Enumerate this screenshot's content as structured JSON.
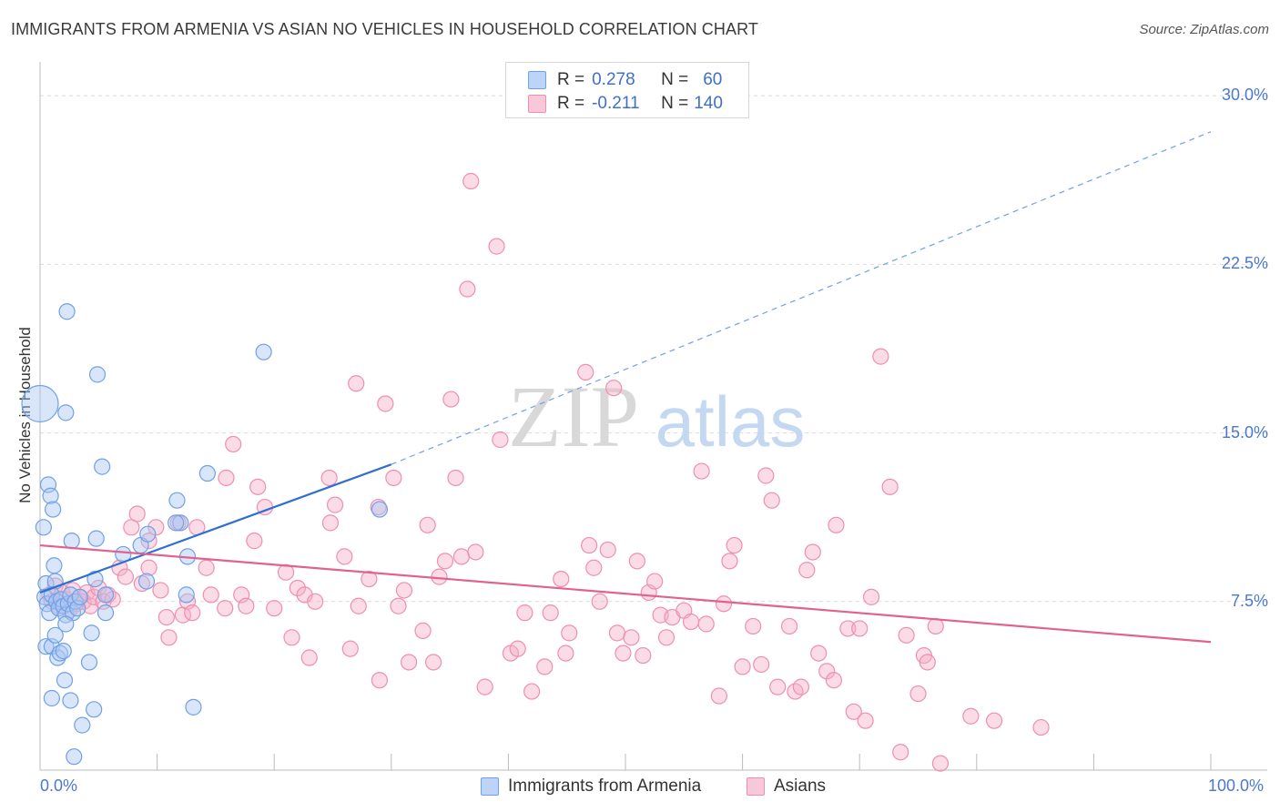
{
  "title": "IMMIGRANTS FROM ARMENIA VS ASIAN NO VEHICLES IN HOUSEHOLD CORRELATION CHART",
  "source": "Source: ZipAtlas.com",
  "colors": {
    "blue": "#6fa0e8",
    "blue_line": "#2f6fd1",
    "pink": "#ee8fb0",
    "pink_line": "#e0628f",
    "axis_label": "#4a78d0"
  },
  "legend": {
    "rows": [
      {
        "r_label": "R =",
        "r_value": "0.278",
        "n_label": "N =",
        "n_value": "60"
      },
      {
        "r_label": "R =",
        "r_value": "-0.211",
        "n_label": "N =",
        "n_value": "140"
      }
    ]
  },
  "bottom_legend": {
    "series1": "Immigrants from Armenia",
    "series2": "Asians"
  },
  "watermark": {
    "zip": "ZIP",
    "atlas": "atlas"
  },
  "chart_data": {
    "type": "scatter",
    "title": "IMMIGRANTS FROM ARMENIA VS ASIAN NO VEHICLES IN HOUSEHOLD CORRELATION CHART",
    "xlabel": "",
    "ylabel": "No Vehicles in Household",
    "xlim": [
      0,
      100
    ],
    "ylim": [
      0,
      30
    ],
    "x_tick_labels": [
      "0.0%",
      "100.0%"
    ],
    "y_ticks": [
      7.5,
      15.0,
      22.5,
      30.0
    ],
    "y_tick_labels": [
      "7.5%",
      "15.0%",
      "22.5%",
      "30.0%"
    ],
    "grid": "horizontal dashed",
    "legend_position": "top-center",
    "series": [
      {
        "name": "Immigrants from Armenia",
        "color": "#6fa0e8",
        "R": 0.278,
        "N": 60,
        "trend": {
          "x": [
            0,
            30
          ],
          "y": [
            7.9,
            13.6
          ],
          "extended_to": [
            100,
            28.4
          ]
        },
        "points": [
          [
            0.0,
            16.3
          ],
          [
            0.3,
            10.8
          ],
          [
            0.5,
            8.3
          ],
          [
            0.7,
            12.7
          ],
          [
            0.9,
            12.2
          ],
          [
            1.1,
            11.6
          ],
          [
            1.2,
            9.1
          ],
          [
            1.3,
            8.4
          ],
          [
            0.4,
            7.7
          ],
          [
            0.6,
            7.4
          ],
          [
            0.8,
            7.0
          ],
          [
            1.0,
            7.8
          ],
          [
            1.4,
            7.5
          ],
          [
            1.6,
            7.2
          ],
          [
            1.8,
            7.6
          ],
          [
            2.0,
            7.3
          ],
          [
            2.2,
            6.9
          ],
          [
            2.4,
            7.4
          ],
          [
            2.6,
            7.8
          ],
          [
            2.8,
            7.0
          ],
          [
            3.0,
            7.5
          ],
          [
            3.2,
            7.2
          ],
          [
            3.4,
            7.7
          ],
          [
            0.5,
            5.5
          ],
          [
            1.0,
            5.5
          ],
          [
            1.3,
            6.0
          ],
          [
            1.5,
            5.0
          ],
          [
            1.7,
            5.2
          ],
          [
            2.0,
            5.3
          ],
          [
            2.2,
            6.5
          ],
          [
            2.3,
            20.4
          ],
          [
            2.2,
            15.9
          ],
          [
            2.7,
            10.2
          ],
          [
            4.9,
            17.6
          ],
          [
            5.3,
            13.5
          ],
          [
            4.8,
            10.3
          ],
          [
            4.7,
            8.5
          ],
          [
            5.6,
            7.8
          ],
          [
            5.6,
            7.0
          ],
          [
            4.4,
            6.1
          ],
          [
            4.2,
            4.8
          ],
          [
            2.1,
            4.0
          ],
          [
            1.0,
            3.2
          ],
          [
            2.6,
            3.1
          ],
          [
            4.6,
            2.7
          ],
          [
            3.6,
            2.0
          ],
          [
            2.9,
            0.6
          ],
          [
            7.1,
            9.6
          ],
          [
            8.6,
            10.0
          ],
          [
            9.2,
            10.5
          ],
          [
            9.1,
            8.4
          ],
          [
            11.7,
            12.0
          ],
          [
            12.0,
            11.0
          ],
          [
            11.6,
            11.0
          ],
          [
            12.6,
            9.5
          ],
          [
            12.5,
            7.8
          ],
          [
            14.3,
            13.2
          ],
          [
            13.1,
            2.8
          ],
          [
            19.1,
            18.6
          ],
          [
            29.0,
            11.6
          ]
        ]
      },
      {
        "name": "Asians",
        "color": "#ee8fb0",
        "R": -0.211,
        "N": 140,
        "trend": {
          "x": [
            0,
            100
          ],
          "y": [
            10.0,
            5.7
          ]
        },
        "points": [
          [
            0.8,
            7.8
          ],
          [
            1.0,
            7.5
          ],
          [
            1.3,
            8.2
          ],
          [
            1.6,
            7.3
          ],
          [
            1.9,
            7.9
          ],
          [
            2.2,
            7.6
          ],
          [
            2.5,
            7.1
          ],
          [
            2.8,
            8.0
          ],
          [
            3.1,
            7.4
          ],
          [
            3.4,
            7.7
          ],
          [
            3.7,
            7.5
          ],
          [
            4.0,
            7.9
          ],
          [
            4.3,
            7.3
          ],
          [
            4.6,
            7.7
          ],
          [
            5.0,
            8.1
          ],
          [
            5.4,
            7.5
          ],
          [
            5.8,
            7.8
          ],
          [
            6.2,
            7.6
          ],
          [
            6.8,
            9.0
          ],
          [
            7.3,
            8.6
          ],
          [
            7.8,
            10.8
          ],
          [
            8.3,
            11.4
          ],
          [
            8.7,
            8.3
          ],
          [
            9.3,
            10.2
          ],
          [
            9.3,
            9.0
          ],
          [
            9.9,
            10.8
          ],
          [
            10.3,
            8.0
          ],
          [
            10.8,
            6.8
          ],
          [
            11.0,
            5.9
          ],
          [
            11.8,
            11.0
          ],
          [
            12.2,
            6.9
          ],
          [
            12.6,
            7.5
          ],
          [
            13.0,
            7.0
          ],
          [
            13.4,
            10.8
          ],
          [
            14.2,
            9.0
          ],
          [
            14.6,
            7.8
          ],
          [
            15.8,
            7.2
          ],
          [
            15.9,
            13.0
          ],
          [
            16.5,
            14.5
          ],
          [
            17.2,
            7.8
          ],
          [
            17.6,
            7.3
          ],
          [
            18.3,
            10.2
          ],
          [
            18.6,
            12.6
          ],
          [
            19.2,
            11.7
          ],
          [
            20.0,
            7.2
          ],
          [
            21.0,
            8.8
          ],
          [
            21.5,
            5.9
          ],
          [
            22.0,
            8.1
          ],
          [
            22.6,
            7.8
          ],
          [
            23.0,
            5.0
          ],
          [
            23.5,
            7.5
          ],
          [
            24.7,
            13.0
          ],
          [
            24.8,
            11.0
          ],
          [
            25.2,
            11.8
          ],
          [
            26.0,
            9.5
          ],
          [
            26.5,
            5.4
          ],
          [
            27.0,
            17.2
          ],
          [
            27.2,
            7.3
          ],
          [
            28.1,
            8.5
          ],
          [
            28.9,
            11.7
          ],
          [
            29.0,
            4.0
          ],
          [
            29.5,
            16.3
          ],
          [
            30.2,
            13.0
          ],
          [
            30.6,
            7.3
          ],
          [
            31.1,
            8.0
          ],
          [
            31.5,
            4.8
          ],
          [
            32.7,
            6.2
          ],
          [
            33.1,
            10.9
          ],
          [
            33.6,
            4.8
          ],
          [
            34.1,
            8.6
          ],
          [
            34.6,
            9.3
          ],
          [
            35.1,
            16.5
          ],
          [
            35.5,
            13.0
          ],
          [
            36.0,
            9.5
          ],
          [
            36.5,
            21.4
          ],
          [
            36.8,
            26.2
          ],
          [
            37.2,
            9.7
          ],
          [
            38.0,
            3.7
          ],
          [
            39.0,
            23.3
          ],
          [
            39.3,
            14.7
          ],
          [
            40.2,
            5.2
          ],
          [
            40.8,
            5.4
          ],
          [
            41.4,
            7.0
          ],
          [
            42.0,
            3.5
          ],
          [
            43.1,
            4.6
          ],
          [
            43.6,
            7.0
          ],
          [
            44.5,
            8.5
          ],
          [
            44.9,
            5.2
          ],
          [
            45.2,
            6.1
          ],
          [
            46.6,
            17.7
          ],
          [
            46.9,
            10.0
          ],
          [
            47.3,
            9.0
          ],
          [
            47.8,
            7.5
          ],
          [
            48.5,
            9.8
          ],
          [
            49.0,
            17.0
          ],
          [
            49.3,
            6.1
          ],
          [
            49.8,
            5.2
          ],
          [
            50.5,
            5.9
          ],
          [
            51.0,
            9.3
          ],
          [
            51.5,
            5.1
          ],
          [
            52.0,
            7.9
          ],
          [
            52.5,
            8.4
          ],
          [
            53.0,
            6.9
          ],
          [
            53.5,
            5.9
          ],
          [
            54.0,
            6.8
          ],
          [
            55.0,
            7.1
          ],
          [
            55.6,
            6.6
          ],
          [
            56.5,
            13.3
          ],
          [
            56.9,
            6.5
          ],
          [
            58.0,
            3.3
          ],
          [
            58.4,
            7.4
          ],
          [
            58.9,
            9.3
          ],
          [
            59.3,
            10.0
          ],
          [
            60.0,
            4.6
          ],
          [
            60.9,
            6.4
          ],
          [
            61.6,
            4.7
          ],
          [
            62.0,
            13.1
          ],
          [
            62.5,
            12.0
          ],
          [
            63.0,
            3.7
          ],
          [
            64.0,
            6.4
          ],
          [
            64.5,
            3.5
          ],
          [
            65.0,
            3.7
          ],
          [
            65.5,
            8.9
          ],
          [
            66.0,
            9.7
          ],
          [
            66.5,
            5.2
          ],
          [
            67.2,
            4.4
          ],
          [
            67.8,
            4.0
          ],
          [
            68.0,
            10.9
          ],
          [
            69.0,
            6.3
          ],
          [
            69.5,
            2.6
          ],
          [
            70.0,
            6.3
          ],
          [
            70.5,
            2.2
          ],
          [
            71.0,
            7.7
          ],
          [
            71.8,
            18.4
          ],
          [
            72.6,
            12.6
          ],
          [
            73.5,
            0.8
          ],
          [
            74.0,
            6.0
          ],
          [
            75.0,
            3.4
          ],
          [
            75.5,
            5.1
          ],
          [
            75.8,
            4.8
          ],
          [
            76.5,
            6.4
          ],
          [
            76.9,
            0.3
          ],
          [
            79.5,
            2.4
          ],
          [
            81.5,
            2.2
          ],
          [
            85.5,
            1.9
          ]
        ]
      }
    ]
  }
}
